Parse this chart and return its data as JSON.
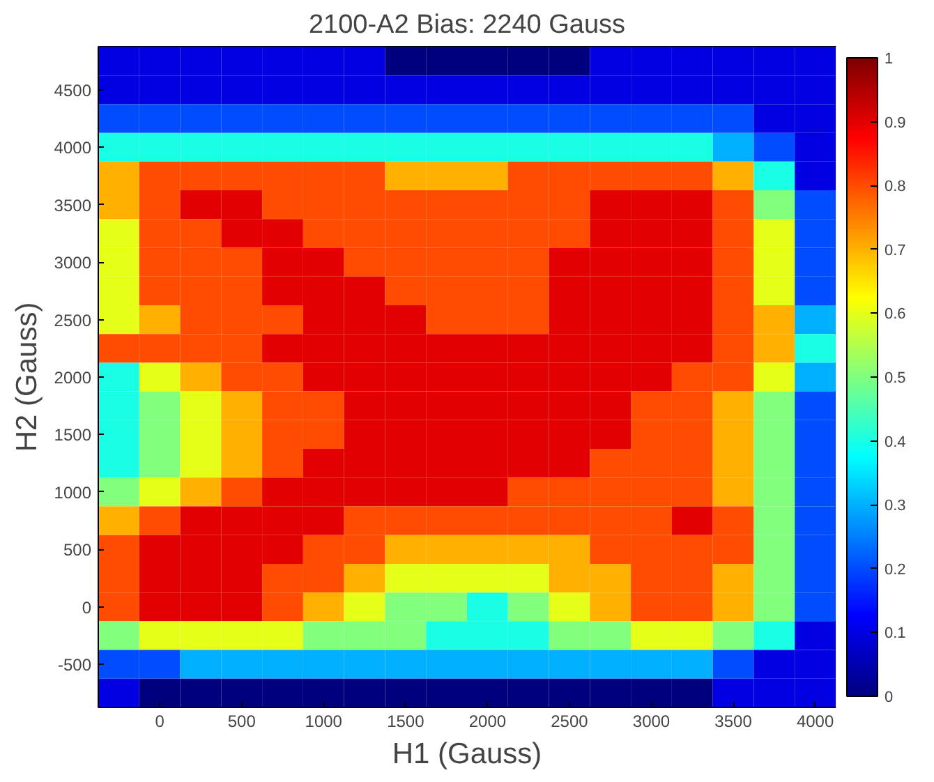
{
  "chart_data": {
    "type": "heatmap",
    "title": "2100-A2 Bias: 2240 Gauss",
    "xlabel": "H1 (Gauss)",
    "ylabel": "H2 (Gauss)",
    "categories": [
      null,
      "0",
      null,
      "500",
      null,
      "1000",
      null,
      "1500",
      null,
      "2000",
      null,
      "2500",
      null,
      "3000",
      null,
      "3500",
      null,
      "4000"
    ],
    "y_categories": [
      null,
      "4500",
      null,
      "4000",
      null,
      "3500",
      null,
      "3000",
      null,
      "2500",
      null,
      "2000",
      null,
      "1500",
      null,
      "1000",
      null,
      "500",
      null,
      "0",
      null,
      "-500",
      null
    ],
    "clim": [
      0,
      1
    ],
    "cticks": [
      0,
      0.1,
      0.2,
      0.3,
      0.4,
      0.5,
      0.6,
      0.7,
      0.8,
      0.9,
      1
    ],
    "cells": [
      [
        0.1,
        0.1,
        0.1,
        0.1,
        0.1,
        0.1,
        0.1,
        0,
        0,
        0,
        0,
        0,
        0.1,
        0.1,
        0.1,
        0.1,
        0.1,
        0.1
      ],
      [
        0.1,
        0.1,
        0.1,
        0.1,
        0.1,
        0.1,
        0.1,
        0.1,
        0.1,
        0.1,
        0.1,
        0.1,
        0.1,
        0.1,
        0.1,
        0.1,
        0.1,
        0.1
      ],
      [
        0.2,
        0.2,
        0.2,
        0.2,
        0.2,
        0.2,
        0.2,
        0.2,
        0.2,
        0.2,
        0.2,
        0.2,
        0.2,
        0.2,
        0.2,
        0.2,
        0.1,
        0.1
      ],
      [
        0.4,
        0.4,
        0.4,
        0.4,
        0.4,
        0.4,
        0.4,
        0.4,
        0.4,
        0.4,
        0.4,
        0.4,
        0.4,
        0.4,
        0.4,
        0.3,
        0.2,
        0.1
      ],
      [
        0.7,
        0.8,
        0.8,
        0.8,
        0.8,
        0.8,
        0.8,
        0.7,
        0.7,
        0.7,
        0.8,
        0.8,
        0.8,
        0.8,
        0.8,
        0.7,
        0.4,
        0.1
      ],
      [
        0.7,
        0.8,
        0.9,
        0.9,
        0.8,
        0.8,
        0.8,
        0.8,
        0.8,
        0.8,
        0.8,
        0.8,
        0.9,
        0.9,
        0.9,
        0.8,
        0.5,
        0.2
      ],
      [
        0.6,
        0.8,
        0.8,
        0.9,
        0.9,
        0.8,
        0.8,
        0.8,
        0.8,
        0.8,
        0.8,
        0.8,
        0.9,
        0.9,
        0.9,
        0.8,
        0.6,
        0.2
      ],
      [
        0.6,
        0.8,
        0.8,
        0.8,
        0.9,
        0.9,
        0.8,
        0.8,
        0.8,
        0.8,
        0.8,
        0.9,
        0.9,
        0.9,
        0.9,
        0.8,
        0.6,
        0.2
      ],
      [
        0.6,
        0.8,
        0.8,
        0.8,
        0.9,
        0.9,
        0.9,
        0.8,
        0.8,
        0.8,
        0.8,
        0.9,
        0.9,
        0.9,
        0.9,
        0.8,
        0.6,
        0.2
      ],
      [
        0.6,
        0.7,
        0.8,
        0.8,
        0.8,
        0.9,
        0.9,
        0.9,
        0.8,
        0.8,
        0.8,
        0.9,
        0.9,
        0.9,
        0.9,
        0.8,
        0.7,
        0.3
      ],
      [
        0.8,
        0.8,
        0.8,
        0.8,
        0.9,
        0.9,
        0.9,
        0.9,
        0.9,
        0.9,
        0.9,
        0.9,
        0.9,
        0.9,
        0.9,
        0.8,
        0.7,
        0.4
      ],
      [
        0.4,
        0.6,
        0.7,
        0.8,
        0.8,
        0.9,
        0.9,
        0.9,
        0.9,
        0.9,
        0.9,
        0.9,
        0.9,
        0.9,
        0.8,
        0.8,
        0.6,
        0.3
      ],
      [
        0.4,
        0.5,
        0.6,
        0.7,
        0.8,
        0.8,
        0.9,
        0.9,
        0.9,
        0.9,
        0.9,
        0.9,
        0.9,
        0.8,
        0.8,
        0.7,
        0.5,
        0.2
      ],
      [
        0.4,
        0.5,
        0.6,
        0.7,
        0.8,
        0.8,
        0.9,
        0.9,
        0.9,
        0.9,
        0.9,
        0.9,
        0.9,
        0.8,
        0.8,
        0.7,
        0.5,
        0.2
      ],
      [
        0.4,
        0.5,
        0.6,
        0.7,
        0.8,
        0.9,
        0.9,
        0.9,
        0.9,
        0.9,
        0.9,
        0.9,
        0.8,
        0.8,
        0.8,
        0.7,
        0.5,
        0.2
      ],
      [
        0.5,
        0.6,
        0.7,
        0.8,
        0.9,
        0.9,
        0.9,
        0.9,
        0.9,
        0.9,
        0.8,
        0.8,
        0.8,
        0.8,
        0.8,
        0.7,
        0.5,
        0.2
      ],
      [
        0.7,
        0.8,
        0.9,
        0.9,
        0.9,
        0.9,
        0.8,
        0.8,
        0.8,
        0.8,
        0.8,
        0.8,
        0.8,
        0.8,
        0.9,
        0.8,
        0.5,
        0.2
      ],
      [
        0.8,
        0.9,
        0.9,
        0.9,
        0.9,
        0.8,
        0.8,
        0.7,
        0.7,
        0.7,
        0.7,
        0.7,
        0.8,
        0.8,
        0.8,
        0.8,
        0.5,
        0.2
      ],
      [
        0.8,
        0.9,
        0.9,
        0.9,
        0.8,
        0.8,
        0.7,
        0.6,
        0.6,
        0.6,
        0.6,
        0.7,
        0.7,
        0.8,
        0.8,
        0.7,
        0.5,
        0.2
      ],
      [
        0.8,
        0.9,
        0.9,
        0.9,
        0.8,
        0.7,
        0.6,
        0.5,
        0.5,
        0.4,
        0.5,
        0.6,
        0.7,
        0.8,
        0.8,
        0.7,
        0.5,
        0.2
      ],
      [
        0.5,
        0.6,
        0.6,
        0.6,
        0.6,
        0.5,
        0.5,
        0.5,
        0.4,
        0.4,
        0.4,
        0.5,
        0.5,
        0.6,
        0.6,
        0.5,
        0.4,
        0.1
      ],
      [
        0.2,
        0.2,
        0.3,
        0.3,
        0.3,
        0.3,
        0.3,
        0.3,
        0.3,
        0.3,
        0.3,
        0.3,
        0.3,
        0.3,
        0.3,
        0.2,
        0.1,
        0.1
      ],
      [
        0.1,
        0,
        0,
        0,
        0,
        0,
        0,
        0,
        0,
        0,
        0,
        0,
        0,
        0,
        0,
        0.1,
        0.1,
        0.1
      ]
    ]
  }
}
